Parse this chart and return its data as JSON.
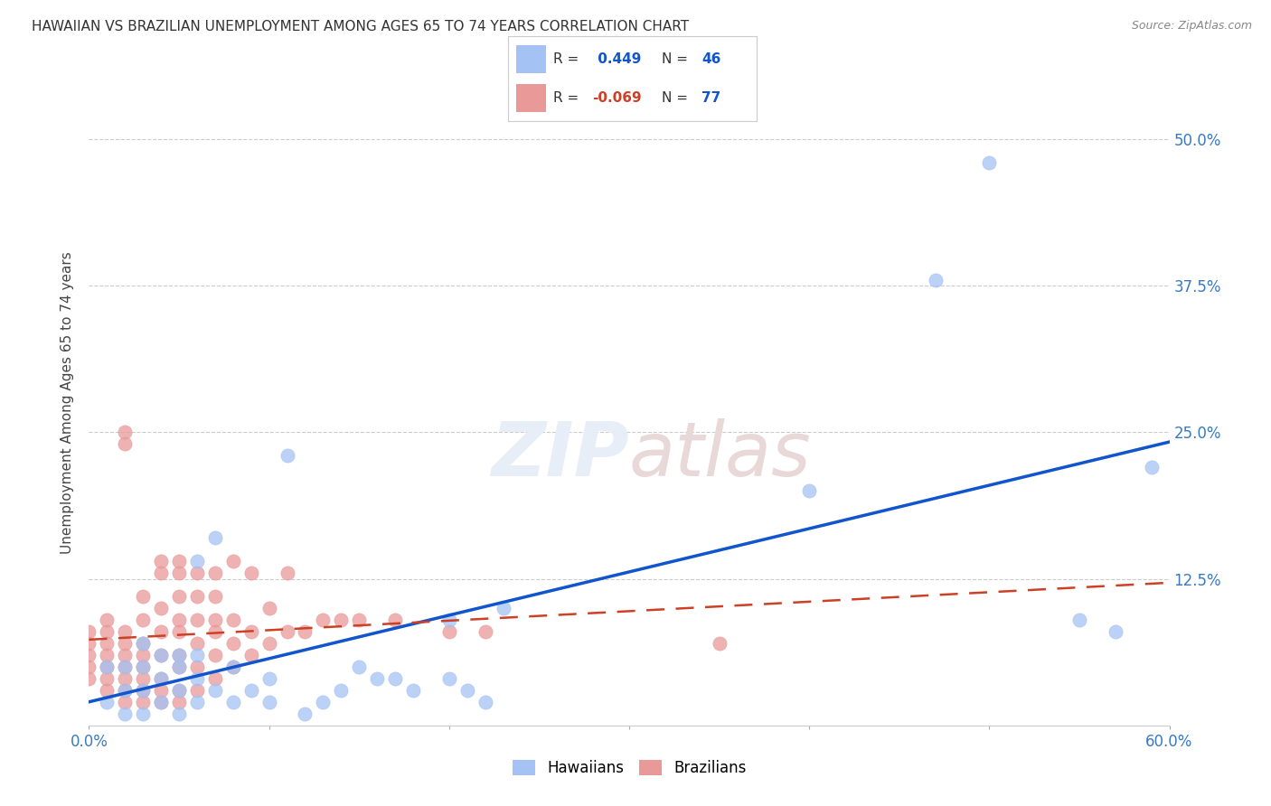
{
  "title": "HAWAIIAN VS BRAZILIAN UNEMPLOYMENT AMONG AGES 65 TO 74 YEARS CORRELATION CHART",
  "source": "Source: ZipAtlas.com",
  "ylabel": "Unemployment Among Ages 65 to 74 years",
  "xlim": [
    0.0,
    0.6
  ],
  "ylim": [
    0.0,
    0.55
  ],
  "xtick_vals": [
    0.0,
    0.1,
    0.2,
    0.3,
    0.4,
    0.5,
    0.6
  ],
  "xtick_labels": [
    "0.0%",
    "",
    "",
    "",
    "",
    "",
    "60.0%"
  ],
  "ytick_vals": [
    0.0,
    0.125,
    0.25,
    0.375,
    0.5
  ],
  "ytick_labels_right": [
    "",
    "12.5%",
    "25.0%",
    "37.5%",
    "50.0%"
  ],
  "hawaiian_color": "#a4c2f4",
  "brazilian_color": "#ea9999",
  "regression_hawaiian_color": "#1155cc",
  "regression_brazilian_color": "#cc4125",
  "R_hawaiian": 0.449,
  "N_hawaiian": 46,
  "R_brazilian": -0.069,
  "N_brazilian": 77,
  "hawaiian_x": [
    0.01,
    0.01,
    0.02,
    0.02,
    0.02,
    0.03,
    0.03,
    0.03,
    0.03,
    0.04,
    0.04,
    0.04,
    0.05,
    0.05,
    0.05,
    0.05,
    0.06,
    0.06,
    0.06,
    0.06,
    0.07,
    0.07,
    0.08,
    0.08,
    0.09,
    0.1,
    0.1,
    0.11,
    0.12,
    0.13,
    0.14,
    0.15,
    0.16,
    0.17,
    0.18,
    0.2,
    0.2,
    0.21,
    0.22,
    0.23,
    0.4,
    0.47,
    0.5,
    0.55,
    0.57,
    0.59
  ],
  "hawaiian_y": [
    0.02,
    0.05,
    0.01,
    0.03,
    0.05,
    0.01,
    0.03,
    0.05,
    0.07,
    0.02,
    0.04,
    0.06,
    0.01,
    0.03,
    0.05,
    0.06,
    0.02,
    0.04,
    0.06,
    0.14,
    0.03,
    0.16,
    0.02,
    0.05,
    0.03,
    0.02,
    0.04,
    0.23,
    0.01,
    0.02,
    0.03,
    0.05,
    0.04,
    0.04,
    0.03,
    0.04,
    0.09,
    0.03,
    0.02,
    0.1,
    0.2,
    0.38,
    0.48,
    0.09,
    0.08,
    0.22
  ],
  "brazilian_x": [
    0.0,
    0.0,
    0.0,
    0.0,
    0.0,
    0.01,
    0.01,
    0.01,
    0.01,
    0.01,
    0.01,
    0.01,
    0.02,
    0.02,
    0.02,
    0.02,
    0.02,
    0.02,
    0.02,
    0.02,
    0.02,
    0.03,
    0.03,
    0.03,
    0.03,
    0.03,
    0.03,
    0.03,
    0.03,
    0.04,
    0.04,
    0.04,
    0.04,
    0.04,
    0.04,
    0.04,
    0.04,
    0.05,
    0.05,
    0.05,
    0.05,
    0.05,
    0.05,
    0.05,
    0.05,
    0.05,
    0.06,
    0.06,
    0.06,
    0.06,
    0.06,
    0.06,
    0.07,
    0.07,
    0.07,
    0.07,
    0.07,
    0.07,
    0.08,
    0.08,
    0.08,
    0.08,
    0.09,
    0.09,
    0.09,
    0.1,
    0.1,
    0.11,
    0.11,
    0.12,
    0.13,
    0.14,
    0.15,
    0.17,
    0.2,
    0.22,
    0.35
  ],
  "brazilian_y": [
    0.04,
    0.05,
    0.06,
    0.07,
    0.08,
    0.03,
    0.04,
    0.05,
    0.06,
    0.07,
    0.08,
    0.09,
    0.02,
    0.03,
    0.04,
    0.05,
    0.06,
    0.07,
    0.08,
    0.24,
    0.25,
    0.02,
    0.03,
    0.04,
    0.05,
    0.06,
    0.07,
    0.09,
    0.11,
    0.02,
    0.03,
    0.04,
    0.06,
    0.08,
    0.1,
    0.13,
    0.14,
    0.02,
    0.03,
    0.05,
    0.06,
    0.08,
    0.09,
    0.11,
    0.13,
    0.14,
    0.03,
    0.05,
    0.07,
    0.09,
    0.11,
    0.13,
    0.04,
    0.06,
    0.08,
    0.09,
    0.11,
    0.13,
    0.05,
    0.07,
    0.09,
    0.14,
    0.06,
    0.08,
    0.13,
    0.07,
    0.1,
    0.08,
    0.13,
    0.08,
    0.09,
    0.09,
    0.09,
    0.09,
    0.08,
    0.08,
    0.07
  ]
}
